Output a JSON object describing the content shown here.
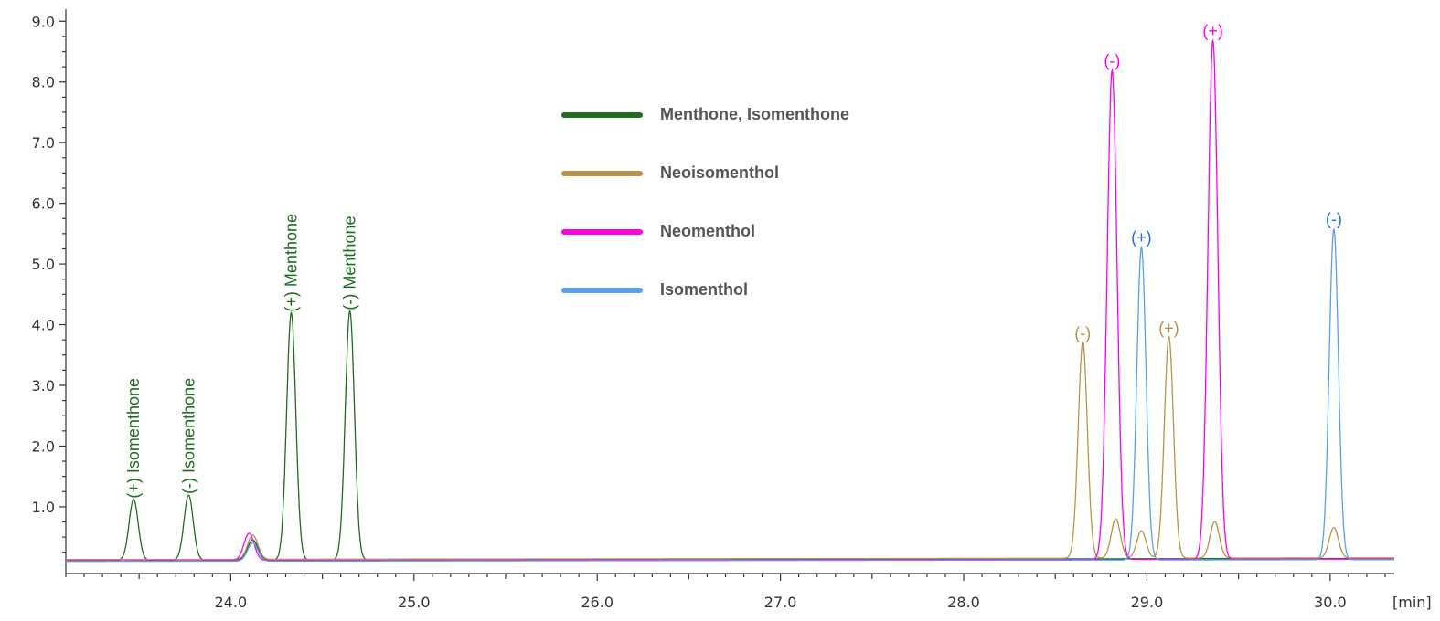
{
  "chart_data": {
    "type": "line",
    "xlabel": "",
    "x_unit": "[min]",
    "ylabel": "",
    "xlim": [
      23.1,
      30.35
    ],
    "ylim": [
      -0.1,
      9.2
    ],
    "x_ticks": [
      24.0,
      25.0,
      26.0,
      27.0,
      28.0,
      29.0,
      30.0
    ],
    "x_tick_labels": [
      "24.0",
      "25.0",
      "26.0",
      "27.0",
      "28.0",
      "29.0",
      "30.0"
    ],
    "y_ticks": [
      1.0,
      2.0,
      3.0,
      4.0,
      5.0,
      6.0,
      7.0,
      8.0,
      9.0
    ],
    "y_tick_labels": [
      "1.0",
      "2.0",
      "3.0",
      "4.0",
      "5.0",
      "6.0",
      "7.0",
      "8.0",
      "9.0"
    ],
    "grid": false,
    "legend_position": "top-center",
    "series": [
      {
        "name": "Menthone, Isomenthone",
        "color": "#1e6e1e",
        "baseline": 0.12,
        "peaks": [
          {
            "x": 23.47,
            "height": 1.0,
            "width": 0.025
          },
          {
            "x": 23.77,
            "height": 1.07,
            "width": 0.025
          },
          {
            "x": 24.12,
            "height": 0.33,
            "width": 0.028
          },
          {
            "x": 24.33,
            "height": 4.07,
            "width": 0.025
          },
          {
            "x": 24.65,
            "height": 4.1,
            "width": 0.025
          }
        ]
      },
      {
        "name": "Neoisomenthol",
        "color": "#b8924a",
        "baseline": 0.13,
        "peaks": [
          {
            "x": 24.12,
            "height": 0.4,
            "width": 0.028
          },
          {
            "x": 28.65,
            "height": 3.57,
            "width": 0.025
          },
          {
            "x": 28.83,
            "height": 0.65,
            "width": 0.025
          },
          {
            "x": 28.97,
            "height": 0.45,
            "width": 0.025
          },
          {
            "x": 29.12,
            "height": 3.65,
            "width": 0.025
          },
          {
            "x": 29.37,
            "height": 0.6,
            "width": 0.025
          },
          {
            "x": 30.02,
            "height": 0.5,
            "width": 0.025
          }
        ]
      },
      {
        "name": "Neomenthol",
        "color": "#ff00e6",
        "baseline": 0.11,
        "peaks": [
          {
            "x": 24.1,
            "height": 0.45,
            "width": 0.028
          },
          {
            "x": 28.81,
            "height": 8.06,
            "width": 0.027
          },
          {
            "x": 29.36,
            "height": 8.55,
            "width": 0.027
          }
        ]
      },
      {
        "name": "Isomenthol",
        "color": "#5b9ef0",
        "baseline": 0.1,
        "peaks": [
          {
            "x": 24.12,
            "height": 0.3,
            "width": 0.028
          },
          {
            "x": 28.97,
            "height": 5.15,
            "width": 0.025
          },
          {
            "x": 30.02,
            "height": 5.45,
            "width": 0.025
          }
        ]
      }
    ],
    "annotations": [
      {
        "text": "(+) Isomenthone",
        "x": 23.47,
        "y": 1.05,
        "rotate": true,
        "color": "#1e6e1e"
      },
      {
        "text": "(-) Isomenthone",
        "x": 23.77,
        "y": 1.12,
        "rotate": true,
        "color": "#1e6e1e"
      },
      {
        "text": "(+) Menthone",
        "x": 24.33,
        "y": 4.12,
        "rotate": true,
        "color": "#1e6e1e"
      },
      {
        "text": "(-) Menthone",
        "x": 24.65,
        "y": 4.15,
        "rotate": true,
        "color": "#1e6e1e"
      },
      {
        "text": "(-)",
        "x": 28.65,
        "y": 3.62,
        "rotate": false,
        "color": "#b8924a"
      },
      {
        "text": "(-)",
        "x": 28.81,
        "y": 8.11,
        "rotate": false,
        "color": "#ff00e6"
      },
      {
        "text": "(+)",
        "x": 28.97,
        "y": 5.2,
        "rotate": false,
        "color": "#1a6fe0"
      },
      {
        "text": "(+)",
        "x": 29.12,
        "y": 3.7,
        "rotate": false,
        "color": "#b8924a"
      },
      {
        "text": "(+)",
        "x": 29.36,
        "y": 8.6,
        "rotate": false,
        "color": "#ff00e6"
      },
      {
        "text": "(-)",
        "x": 30.02,
        "y": 5.5,
        "rotate": false,
        "color": "#1a6fe0"
      }
    ]
  }
}
